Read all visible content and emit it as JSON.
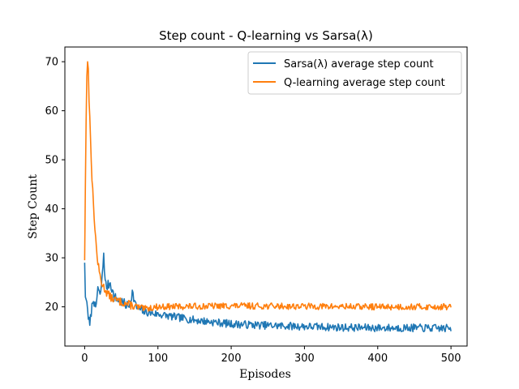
{
  "chart_data": {
    "type": "line",
    "title": "Step count - Q-learning vs Sarsa(λ)",
    "xlabel": "Episodes",
    "ylabel": "Step Count",
    "xlim": [
      -27,
      522
    ],
    "ylim": [
      12,
      73
    ],
    "xticks": [
      0,
      100,
      200,
      300,
      400,
      500
    ],
    "yticks": [
      20,
      30,
      40,
      50,
      60,
      70
    ],
    "grid": false,
    "legend_position": "top-right",
    "series": [
      {
        "name": "Sarsa(λ) average step count",
        "color": "#1f77b4",
        "keypoints": [
          [
            0,
            29
          ],
          [
            1,
            22
          ],
          [
            3,
            21
          ],
          [
            5,
            18
          ],
          [
            7,
            16
          ],
          [
            9,
            19
          ],
          [
            12,
            22
          ],
          [
            15,
            19
          ],
          [
            18,
            24
          ],
          [
            21,
            22
          ],
          [
            24,
            26
          ],
          [
            26,
            31
          ],
          [
            28,
            25
          ],
          [
            30,
            24
          ],
          [
            35,
            25
          ],
          [
            40,
            22
          ],
          [
            50,
            21
          ],
          [
            60,
            20
          ],
          [
            65,
            23
          ],
          [
            70,
            20
          ],
          [
            80,
            19
          ],
          [
            100,
            18.5
          ],
          [
            120,
            18
          ],
          [
            150,
            17.3
          ],
          [
            200,
            16.5
          ],
          [
            250,
            16.2
          ],
          [
            300,
            16
          ],
          [
            350,
            15.8
          ],
          [
            400,
            15.7
          ],
          [
            450,
            15.7
          ],
          [
            500,
            15.6
          ]
        ],
        "noise": 0.8,
        "seed": 7
      },
      {
        "name": "Q-learning average step count",
        "color": "#ff7f0e",
        "keypoints": [
          [
            0,
            29.5
          ],
          [
            1,
            45
          ],
          [
            2,
            58
          ],
          [
            3,
            67
          ],
          [
            4,
            70
          ],
          [
            5,
            69
          ],
          [
            6,
            62
          ],
          [
            8,
            55
          ],
          [
            10,
            46
          ],
          [
            12,
            41
          ],
          [
            14,
            36
          ],
          [
            16,
            32
          ],
          [
            18,
            29
          ],
          [
            20,
            27
          ],
          [
            23,
            25
          ],
          [
            26,
            24
          ],
          [
            30,
            23
          ],
          [
            35,
            22
          ],
          [
            40,
            21.5
          ],
          [
            50,
            21
          ],
          [
            60,
            20.5
          ],
          [
            70,
            20
          ],
          [
            80,
            19.5
          ],
          [
            90,
            19.8
          ],
          [
            100,
            20
          ],
          [
            150,
            20.1
          ],
          [
            200,
            20.2
          ],
          [
            300,
            20.1
          ],
          [
            400,
            20
          ],
          [
            500,
            20
          ]
        ],
        "noise": 0.65,
        "seed": 13
      }
    ]
  }
}
